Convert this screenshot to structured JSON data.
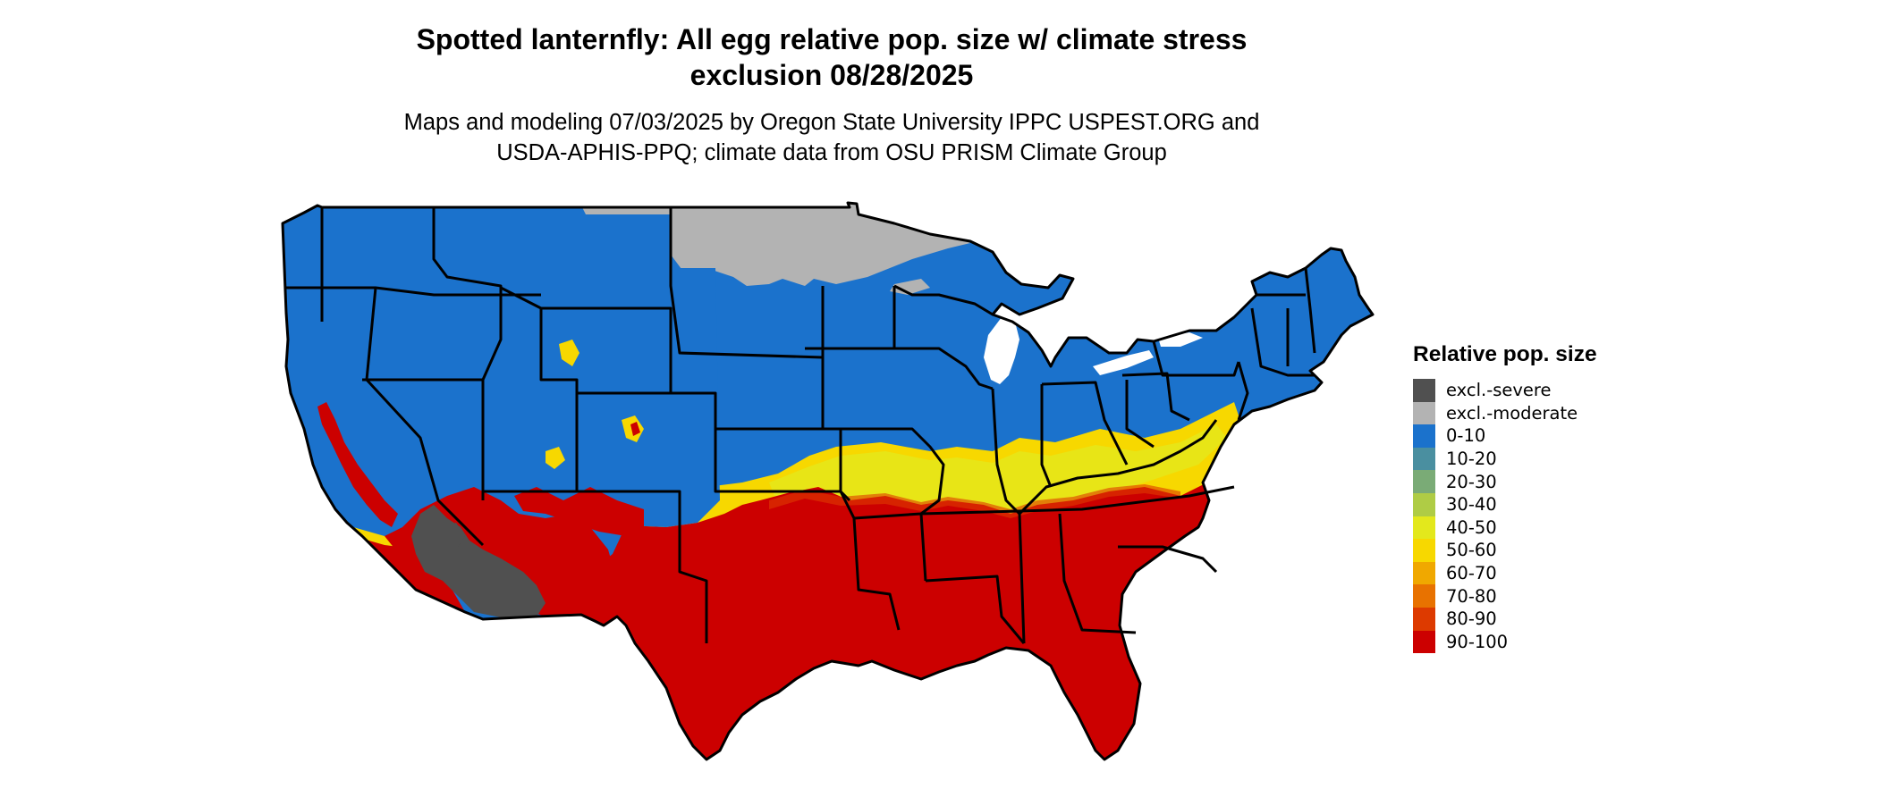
{
  "title": {
    "line1": "Spotted lanternfly: All egg relative pop. size w/ climate stress",
    "line2": "exclusion 08/28/2025"
  },
  "subtitle": {
    "line1": "Maps and modeling 07/03/2025 by Oregon State University IPPC USPEST.ORG and",
    "line2": "USDA-APHIS-PPQ; climate data from OSU PRISM Climate Group"
  },
  "legend": {
    "title": "Relative pop. size",
    "items": [
      {
        "label": "excl.-severe",
        "color": "#505050"
      },
      {
        "label": "excl.-moderate",
        "color": "#b3b3b3"
      },
      {
        "label": "0-10",
        "color": "#1b72cc"
      },
      {
        "label": "10-20",
        "color": "#4a8fa0"
      },
      {
        "label": "20-30",
        "color": "#7aab76"
      },
      {
        "label": "30-40",
        "color": "#afcc45"
      },
      {
        "label": "40-50",
        "color": "#e3e81c"
      },
      {
        "label": "50-60",
        "color": "#f7d800"
      },
      {
        "label": "60-70",
        "color": "#f0a800"
      },
      {
        "label": "70-80",
        "color": "#e87200"
      },
      {
        "label": "80-90",
        "color": "#dd3a00"
      },
      {
        "label": "90-100",
        "color": "#cc0000"
      }
    ]
  },
  "map": {
    "region": "conterminous-united-states",
    "colors": {
      "north": "#1b72cc",
      "south": "#cc0000",
      "transition": "#f7d800",
      "excl_moderate": "#b3b3b3",
      "excl_severe": "#505050",
      "border": "#000000",
      "lake": "#ffffff"
    }
  }
}
